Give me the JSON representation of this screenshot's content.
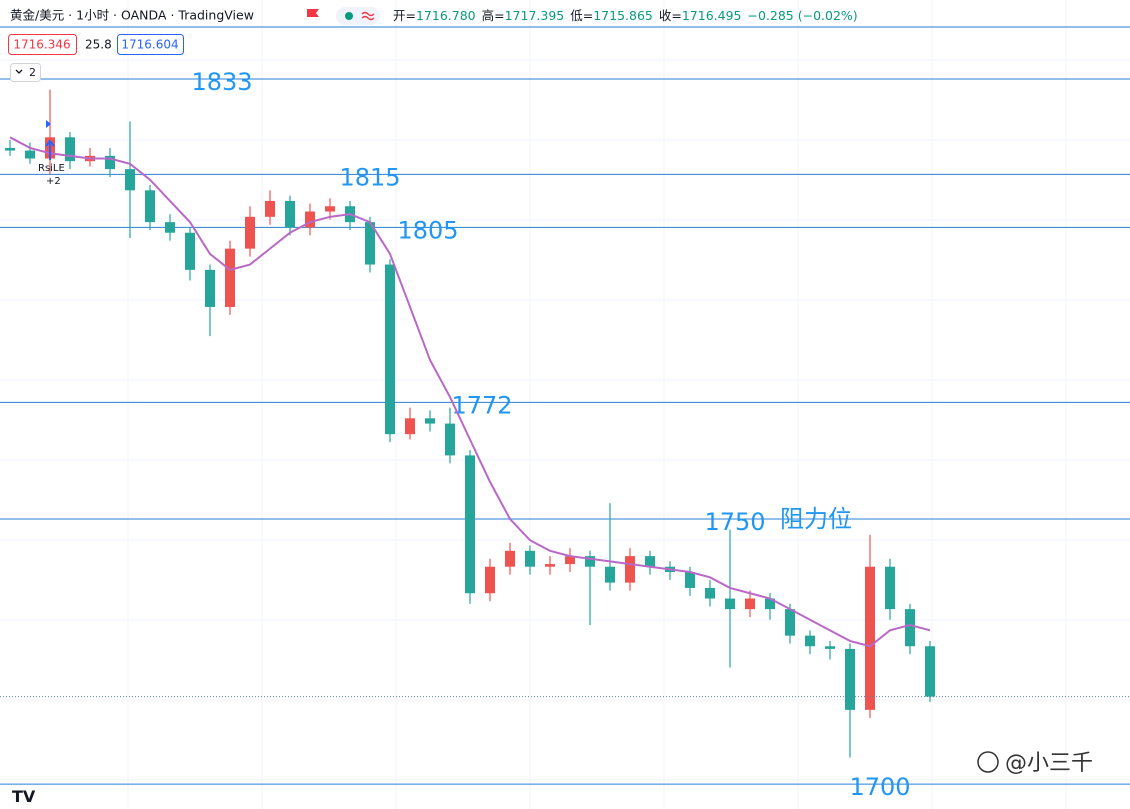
{
  "header": {
    "symbol": "黄金/美元 · 1小时 · OANDA · TradingView",
    "ohlc": [
      {
        "label": "开=",
        "value": "1716.780"
      },
      {
        "label": "高=",
        "value": "1717.395"
      },
      {
        "label": "低=",
        "value": "1715.865"
      },
      {
        "label": "收=",
        "value": "1716.495"
      }
    ],
    "change": "−0.285 (−0.02%)"
  },
  "indicator": {
    "values": [
      "1716.346",
      "25.8",
      "1716.604"
    ],
    "collapse": "2"
  },
  "signal": {
    "label": "RsiLE",
    "count": "+2"
  },
  "watermark": "@小三千",
  "chart_data": {
    "type": "candlestick",
    "ylim": [
      1695.3,
      1847.9
    ],
    "up_color": "#ef5350",
    "down_color": "#26a69a",
    "open": [
      1820,
      1819.5,
      1818,
      1822,
      1817.5,
      1818.5,
      1816,
      1812,
      1806,
      1804,
      1797,
      1790,
      1801,
      1807,
      1810,
      1805,
      1808,
      1809,
      1806,
      1798,
      1766,
      1769,
      1768,
      1762,
      1736,
      1741,
      1744,
      1741,
      1741.5,
      1743,
      1741,
      1738,
      1743,
      1741,
      1740,
      1737,
      1735,
      1733,
      1735,
      1733,
      1728,
      1726,
      1725.5,
      1714,
      1741,
      1733,
      1726
    ],
    "high": [
      1821.5,
      1821,
      1831,
      1823,
      1820,
      1820,
      1825,
      1813,
      1807.5,
      1805,
      1798,
      1802.5,
      1809,
      1812,
      1811,
      1809.5,
      1810.5,
      1810,
      1807,
      1799,
      1771,
      1770.5,
      1771,
      1763,
      1742.5,
      1745.5,
      1745,
      1743,
      1744.5,
      1744,
      1753,
      1744.5,
      1744,
      1742,
      1741,
      1738.5,
      1748,
      1736.5,
      1736,
      1734,
      1729,
      1727,
      1726.5,
      1747,
      1742.5,
      1734,
      1727
    ],
    "low": [
      1818.5,
      1817,
      1815,
      1816,
      1816.5,
      1814.5,
      1803,
      1804.5,
      1802.5,
      1795,
      1784.5,
      1788.5,
      1799.5,
      1805.5,
      1803.5,
      1803.5,
      1806.5,
      1804.5,
      1796.5,
      1764.5,
      1765,
      1766.5,
      1760.5,
      1734,
      1734.5,
      1739.5,
      1739.5,
      1739.5,
      1740,
      1730,
      1736.5,
      1736.5,
      1739.5,
      1738.5,
      1735.5,
      1733.5,
      1722,
      1731.5,
      1731,
      1726.5,
      1724.5,
      1723.5,
      1705,
      1712.5,
      1731,
      1724.5,
      1715.5
    ],
    "close": [
      1819.5,
      1818,
      1822,
      1817.5,
      1818.5,
      1816,
      1812,
      1806,
      1804,
      1797,
      1790,
      1801,
      1807,
      1810,
      1805,
      1808,
      1809,
      1806,
      1798,
      1766,
      1769,
      1768,
      1762,
      1736,
      1741,
      1744,
      1741,
      1741.5,
      1743,
      1741,
      1738,
      1743,
      1741,
      1740,
      1737,
      1735,
      1733,
      1735,
      1733,
      1728,
      1726,
      1725.5,
      1714,
      1741,
      1733,
      1726,
      1716.5
    ],
    "ma": {
      "color": "#ba68c8",
      "values": [
        1822,
        1820,
        1819,
        1818.5,
        1818,
        1818,
        1817,
        1814,
        1810,
        1806,
        1800,
        1797,
        1798,
        1801,
        1804,
        1806,
        1807,
        1807.5,
        1806,
        1800,
        1790,
        1780,
        1773,
        1765,
        1757,
        1750,
        1746,
        1744,
        1743,
        1742.5,
        1742,
        1741.5,
        1741,
        1740.5,
        1740,
        1739,
        1737,
        1736,
        1735,
        1733,
        1731,
        1729,
        1727,
        1726,
        1729,
        1730,
        1729
      ]
    },
    "levels": [
      1833,
      1815,
      1805,
      1772,
      1750,
      1700
    ],
    "level_note": "阻力位",
    "level_color": "#2196f3"
  }
}
